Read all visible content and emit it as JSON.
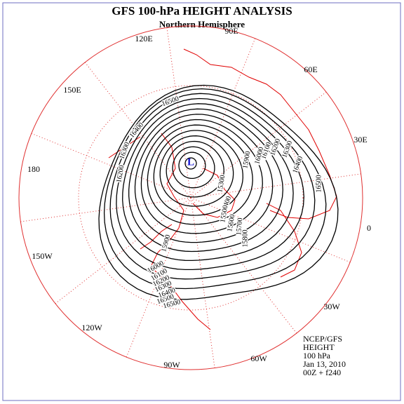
{
  "title": "GFS 100-hPa HEIGHT ANALYSIS",
  "subtitle": "Northern Hemisphere",
  "longitude_labels": [
    "90E",
    "60E",
    "30E",
    "0",
    "30W",
    "60W",
    "90W",
    "120W",
    "150W",
    "180",
    "150E",
    "120E"
  ],
  "low_marker": "L",
  "contour_labels": [
    "16500",
    "16400",
    "16300",
    "16200",
    "16500",
    "16400",
    "16300",
    "16200",
    "16100",
    "16000",
    "15900",
    "15400",
    "15300",
    "15500",
    "15600",
    "15700",
    "15800",
    "16500",
    "15900",
    "16000",
    "16100",
    "16200",
    "16300",
    "16400",
    "16500"
  ],
  "info": [
    "NCEP/GFS",
    "HEIGHT",
    "100 hPa",
    "Jan 13, 2010",
    "00Z + f240"
  ]
}
